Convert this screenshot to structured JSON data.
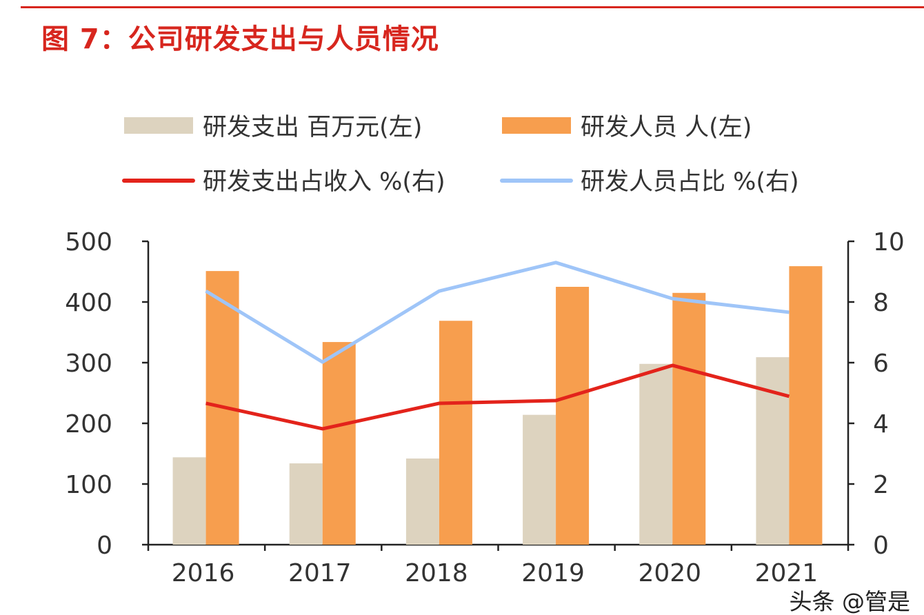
{
  "title": "图 7：公司研发支出与人员情况",
  "watermark": "头条 @管是",
  "chart_data": {
    "type": "bar+line",
    "categories": [
      "2016",
      "2017",
      "2018",
      "2019",
      "2020",
      "2021"
    ],
    "series": [
      {
        "name": "研发支出 百万元(左)",
        "kind": "bar",
        "axis": "left",
        "color": "#ddd3bf",
        "values": [
          144,
          134,
          142,
          214,
          298,
          309
        ]
      },
      {
        "name": "研发人员 人(左)",
        "kind": "bar",
        "axis": "left",
        "color": "#f79e4e",
        "values": [
          451,
          334,
          369,
          425,
          415,
          459
        ]
      },
      {
        "name": "研发支出占收入 %(右)",
        "kind": "line",
        "axis": "right",
        "color": "#e3231b",
        "values": [
          4.66,
          3.82,
          4.66,
          4.75,
          5.91,
          4.89
        ]
      },
      {
        "name": "研发人员占比 %(右)",
        "kind": "line",
        "axis": "right",
        "color": "#9fc5f8",
        "values": [
          8.36,
          6.02,
          8.36,
          9.3,
          8.11,
          7.66
        ]
      }
    ],
    "left_axis": {
      "range": [
        0,
        500
      ],
      "ticks": [
        "0",
        "100",
        "200",
        "300",
        "400",
        "500"
      ]
    },
    "right_axis": {
      "range": [
        0,
        10
      ],
      "ticks": [
        "0",
        "2",
        "4",
        "6",
        "8",
        "10"
      ]
    },
    "grid": false,
    "legend_placement": "top"
  }
}
